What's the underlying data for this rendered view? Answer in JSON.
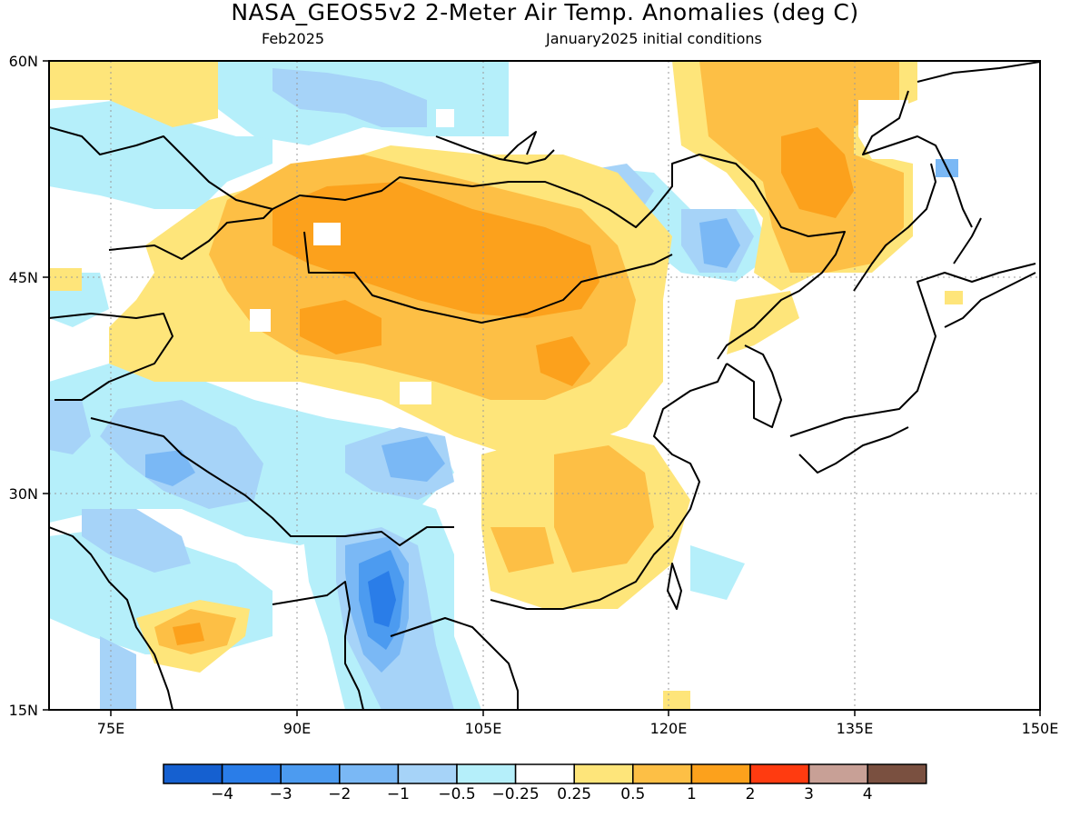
{
  "title": "NASA_GEOS5v2 2-Meter Air Temp. Anomalies (deg C)",
  "subtitle_left": "Feb2025",
  "subtitle_right": "January2025 initial conditions",
  "map": {
    "lon_range": [
      70,
      150
    ],
    "lat_range": [
      15,
      60
    ],
    "lon_ticks": [
      "75E",
      "90E",
      "105E",
      "120E",
      "135E",
      "150E"
    ],
    "lat_ticks": [
      "60N",
      "45N",
      "30N",
      "15N"
    ]
  },
  "colorbar": {
    "labels": [
      "-4",
      "-3",
      "-2",
      "-1",
      "-0.5",
      "-0.25",
      "0.25",
      "0.5",
      "1",
      "2",
      "3",
      "4"
    ],
    "colors": [
      "#1560d0",
      "#2a7de8",
      "#4c9bf0",
      "#7ab8f5",
      "#a6d3f8",
      "#b5effa",
      "#ffffff",
      "#fee57a",
      "#fdbf45",
      "#fca11c",
      "#ff3b10",
      "#c8a096",
      "#7a5040"
    ]
  }
}
